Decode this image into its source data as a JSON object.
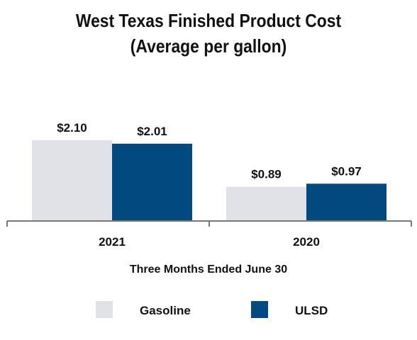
{
  "chart_data": {
    "type": "bar",
    "title": "West Texas Finished Product Cost",
    "subtitle": "(Average per gallon)",
    "xlabel": "Three Months Ended June 30",
    "ylabel": "",
    "categories": [
      "2021",
      "2020"
    ],
    "series": [
      {
        "name": "Gasoline",
        "color": "#e1e2e7",
        "values": [
          2.1,
          0.89
        ],
        "labels": [
          "$2.10",
          "$0.89"
        ]
      },
      {
        "name": "ULSD",
        "color": "#004a80",
        "values": [
          2.01,
          0.97
        ],
        "labels": [
          "$2.01",
          "$0.97"
        ]
      }
    ],
    "ylim": [
      0,
      2.45
    ],
    "grid": false,
    "legend_position": "bottom"
  }
}
